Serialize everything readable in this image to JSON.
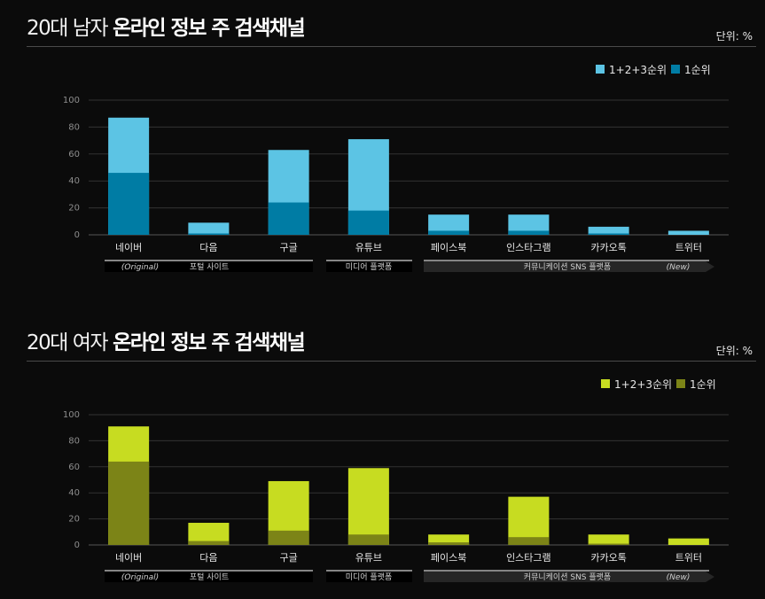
{
  "panels": [
    {
      "title_light": "20대 남자",
      "title_bold": "온라인 정보 주 검색채널",
      "unit": "단위: %",
      "legend": [
        "1+2+3순위",
        "1순위"
      ],
      "colors": {
        "total": "#5cc4e4",
        "first": "#007ca4"
      },
      "groups": {
        "portal": "포털 사이트",
        "media": "미디어 플랫폼",
        "sns": "커뮤니케이션 SNS 플랫폼",
        "original": "(Original)",
        "new": "(New)"
      }
    },
    {
      "title_light": "20대 여자",
      "title_bold": "온라인 정보 주 검색채널",
      "unit": "단위: %",
      "legend": [
        "1+2+3순위",
        "1순위"
      ],
      "colors": {
        "total": "#c7dc21",
        "first": "#7c8417"
      },
      "groups": {
        "portal": "포털 사이트",
        "media": "미디어 플랫폼",
        "sns": "커뮤니케이션 SNS 플랫폼",
        "original": "(Original)",
        "new": "(New)"
      }
    }
  ],
  "chart_data": [
    {
      "type": "bar",
      "title": "20대 남자 온라인 정보 주 검색채널",
      "categories": [
        "네이버",
        "다음",
        "구글",
        "유튜브",
        "페이스북",
        "인스타그램",
        "카카오톡",
        "트위터"
      ],
      "series": [
        {
          "name": "1+2+3순위",
          "values": [
            87,
            9,
            63,
            71,
            15,
            15,
            6,
            3
          ]
        },
        {
          "name": "1순위",
          "values": [
            46,
            1,
            24,
            18,
            3,
            3,
            1,
            0
          ]
        }
      ],
      "yticks": [
        "0",
        "20",
        "40",
        "60",
        "80",
        "100"
      ],
      "ylim": [
        0,
        100
      ],
      "grid": true,
      "legend_position": "top-right"
    },
    {
      "type": "bar",
      "title": "20대 여자 온라인 정보 주 검색채널",
      "categories": [
        "네이버",
        "다음",
        "구글",
        "유튜브",
        "페이스북",
        "인스타그램",
        "카카오톡",
        "트위터"
      ],
      "series": [
        {
          "name": "1+2+3순위",
          "values": [
            91,
            17,
            49,
            59,
            8,
            37,
            8,
            5
          ]
        },
        {
          "name": "1순위",
          "values": [
            64,
            3,
            11,
            8,
            2,
            6,
            1,
            0
          ]
        }
      ],
      "yticks": [
        "0",
        "20",
        "40",
        "60",
        "80",
        "100"
      ],
      "ylim": [
        0,
        100
      ],
      "grid": true,
      "legend_position": "top-right"
    }
  ]
}
